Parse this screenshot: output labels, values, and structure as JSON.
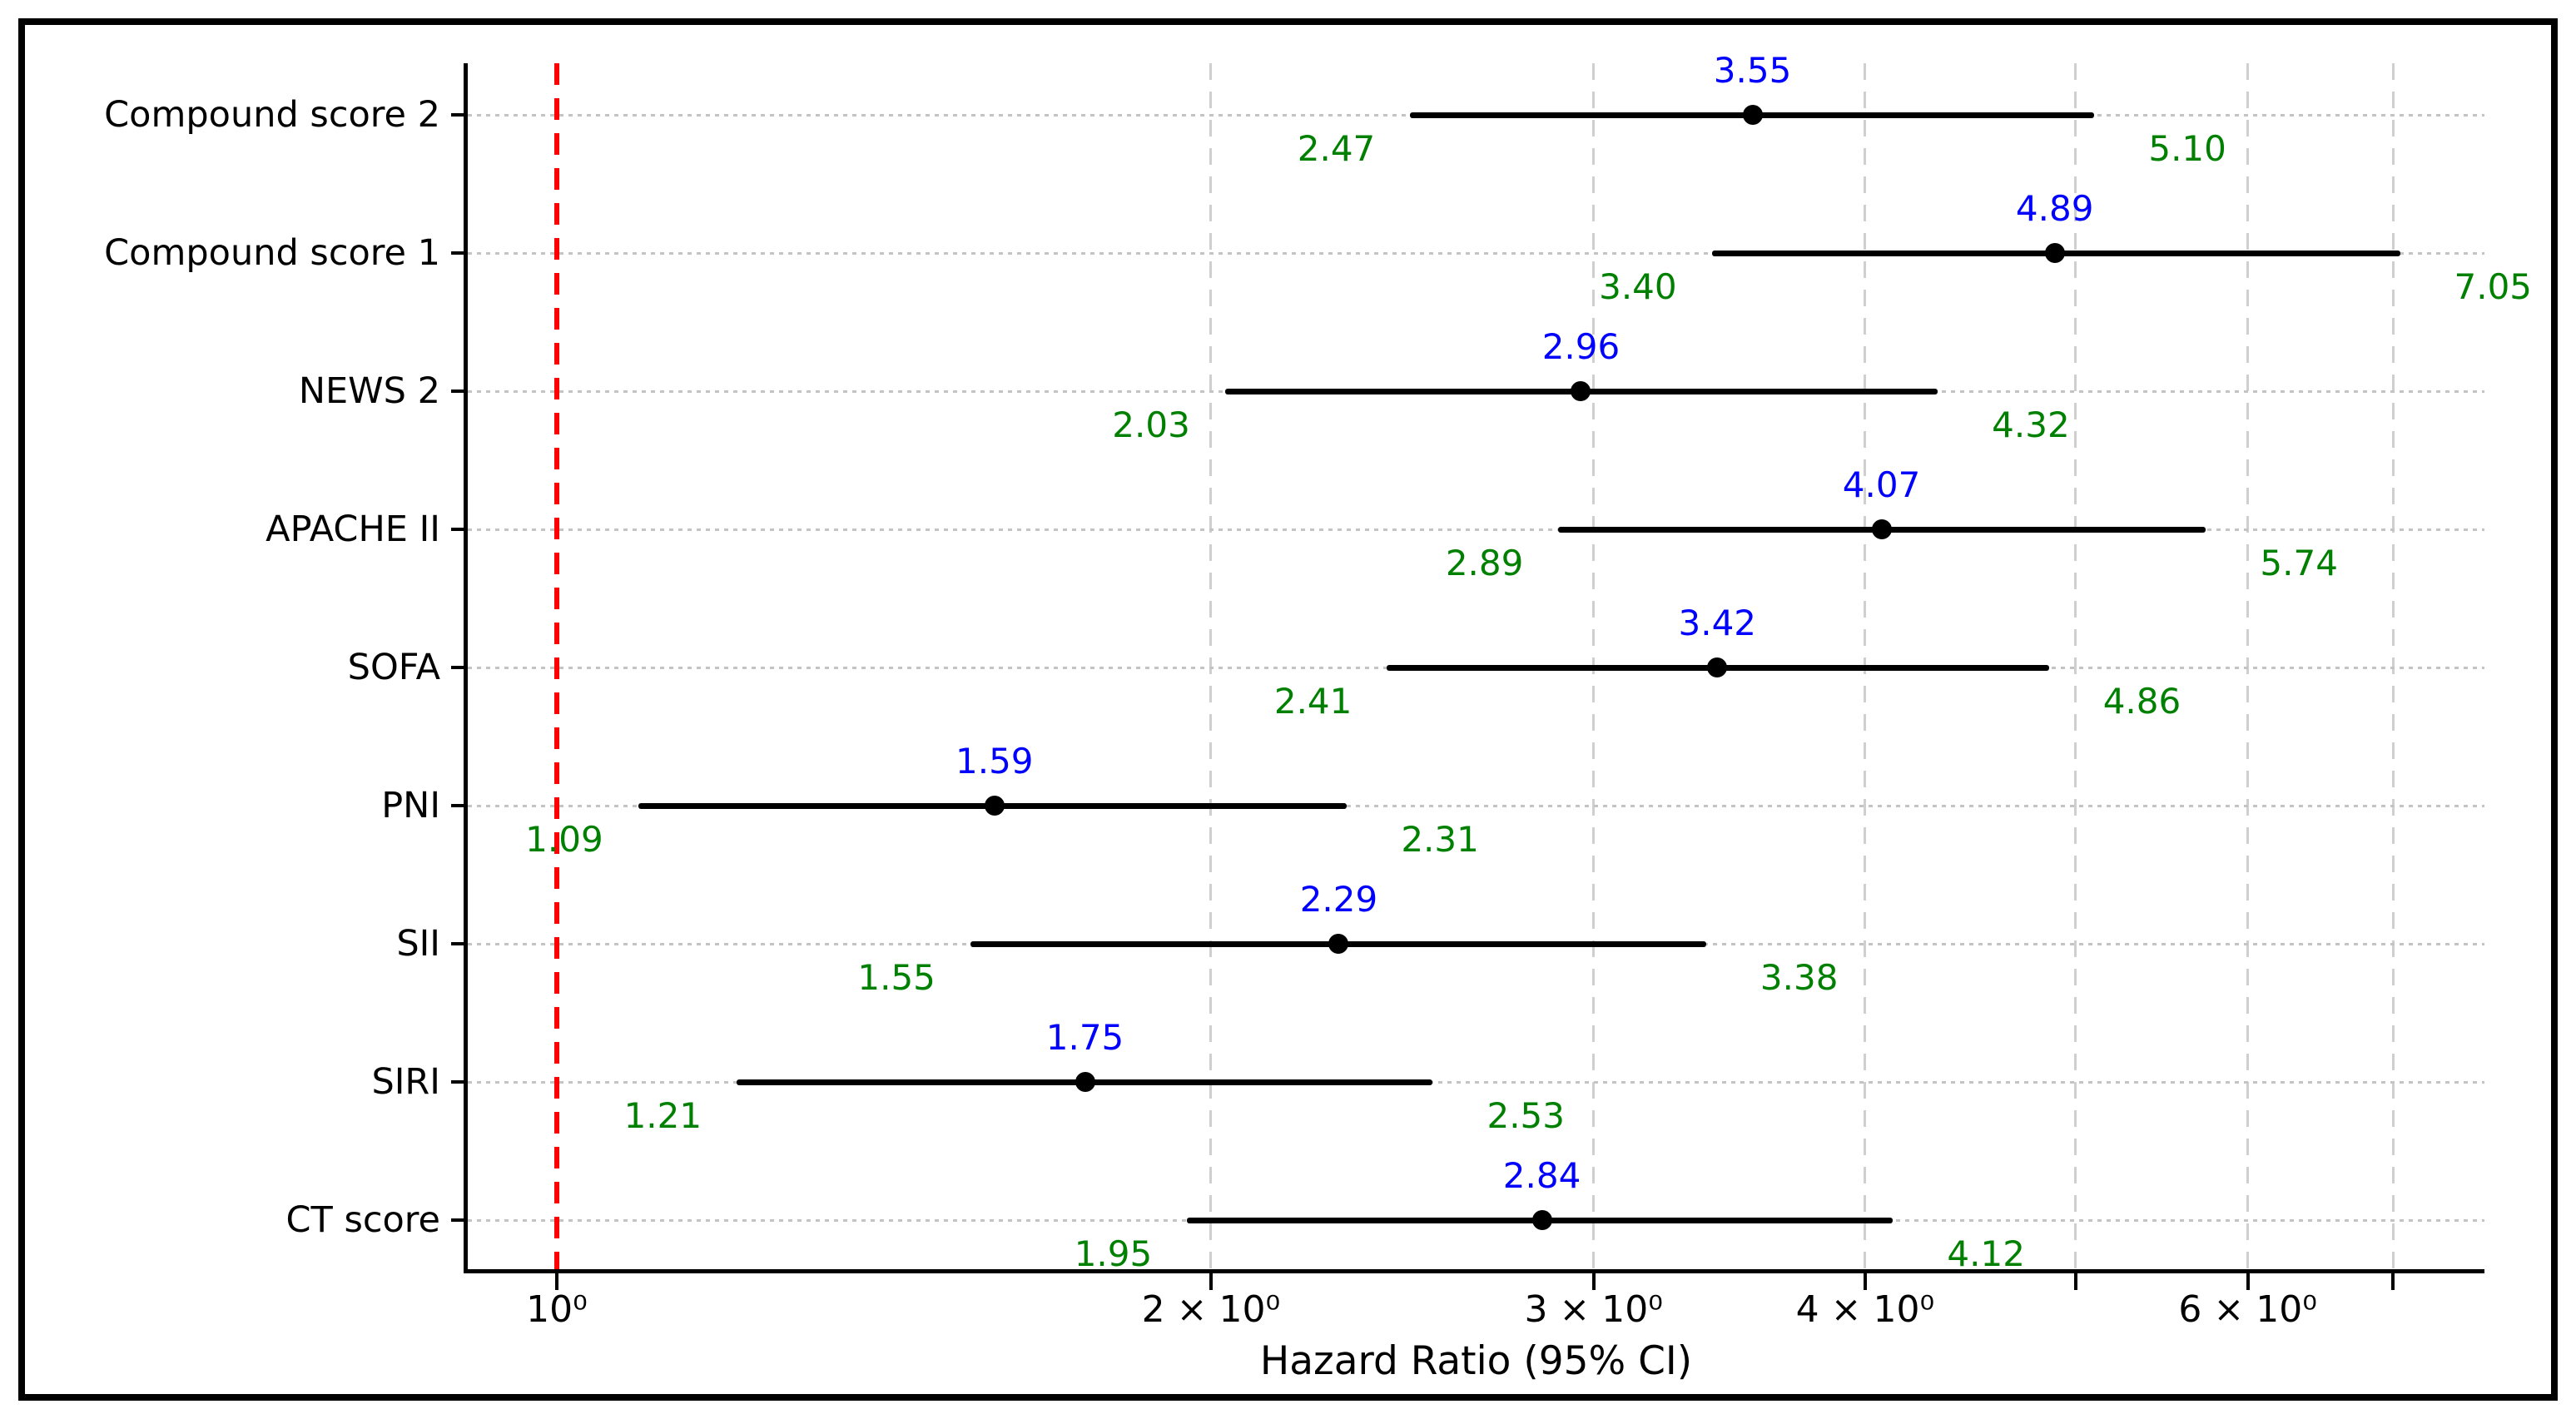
{
  "figure": {
    "background": "#ffffff",
    "border_color": "#000000"
  },
  "chart_data": {
    "type": "scatter",
    "subtype": "forest-plot-errorbar",
    "title": "",
    "xlabel": "Hazard Ratio (95% CI)",
    "ylabel": "",
    "x_scale": "log",
    "xlim": [
      0.91,
      7.71
    ],
    "grid": {
      "horizontal": "dotted",
      "vertical": "dashed"
    },
    "legend_position": "none",
    "reference_line": {
      "value": 1.0,
      "color": "#ff0000",
      "style": "dashed"
    },
    "categories": [
      "Compound score 2",
      "Compound score 1",
      "NEWS 2",
      "APACHE II",
      "SOFA",
      "PNI",
      "SII",
      "SIRI",
      "CT score"
    ],
    "series": [
      {
        "name": "Hazard Ratio (95% CI)",
        "points": [
          {
            "category": "Compound score 2",
            "hr": 3.55,
            "ci_lower": 2.47,
            "ci_upper": 5.1,
            "hr_label": "3.55",
            "ci_lower_label": "2.47",
            "ci_upper_label": "5.10"
          },
          {
            "category": "Compound score 1",
            "hr": 4.89,
            "ci_lower": 3.4,
            "ci_upper": 7.05,
            "hr_label": "4.89",
            "ci_lower_label": "3.40",
            "ci_upper_label": "7.05"
          },
          {
            "category": "NEWS 2",
            "hr": 2.96,
            "ci_lower": 2.03,
            "ci_upper": 4.32,
            "hr_label": "2.96",
            "ci_lower_label": "2.03",
            "ci_upper_label": "4.32"
          },
          {
            "category": "APACHE II",
            "hr": 4.07,
            "ci_lower": 2.89,
            "ci_upper": 5.74,
            "hr_label": "4.07",
            "ci_lower_label": "2.89",
            "ci_upper_label": "5.74"
          },
          {
            "category": "SOFA",
            "hr": 3.42,
            "ci_lower": 2.41,
            "ci_upper": 4.86,
            "hr_label": "3.42",
            "ci_lower_label": "2.41",
            "ci_upper_label": "4.86"
          },
          {
            "category": "PNI",
            "hr": 1.59,
            "ci_lower": 1.09,
            "ci_upper": 2.31,
            "hr_label": "1.59",
            "ci_lower_label": "1.09",
            "ci_upper_label": "2.31"
          },
          {
            "category": "SII",
            "hr": 2.29,
            "ci_lower": 1.55,
            "ci_upper": 3.38,
            "hr_label": "2.29",
            "ci_lower_label": "1.55",
            "ci_upper_label": "3.38"
          },
          {
            "category": "SIRI",
            "hr": 1.75,
            "ci_lower": 1.21,
            "ci_upper": 2.53,
            "hr_label": "1.75",
            "ci_lower_label": "1.21",
            "ci_upper_label": "2.53"
          },
          {
            "category": "CT score",
            "hr": 2.84,
            "ci_lower": 1.95,
            "ci_upper": 4.12,
            "hr_label": "2.84",
            "ci_lower_label": "1.95",
            "ci_upper_label": "4.12"
          }
        ]
      }
    ],
    "x_ticks": [
      {
        "value": 1,
        "label": "10⁰"
      },
      {
        "value": 2,
        "label": "2 × 10⁰"
      },
      {
        "value": 3,
        "label": "3 × 10⁰"
      },
      {
        "value": 4,
        "label": "4 × 10⁰"
      },
      {
        "value": 5,
        "label": ""
      },
      {
        "value": 6,
        "label": "6 × 10⁰"
      },
      {
        "value": 7,
        "label": ""
      }
    ],
    "vertical_gridline_values": [
      2,
      3,
      4,
      5,
      6,
      7
    ],
    "colors": {
      "estimate_label": "#0000ff",
      "ci_label": "#008000",
      "marker": "#000000",
      "ci_line": "#000000",
      "grid": "#c8c8c8",
      "reference": "#ff0000",
      "text": "#000000"
    }
  }
}
